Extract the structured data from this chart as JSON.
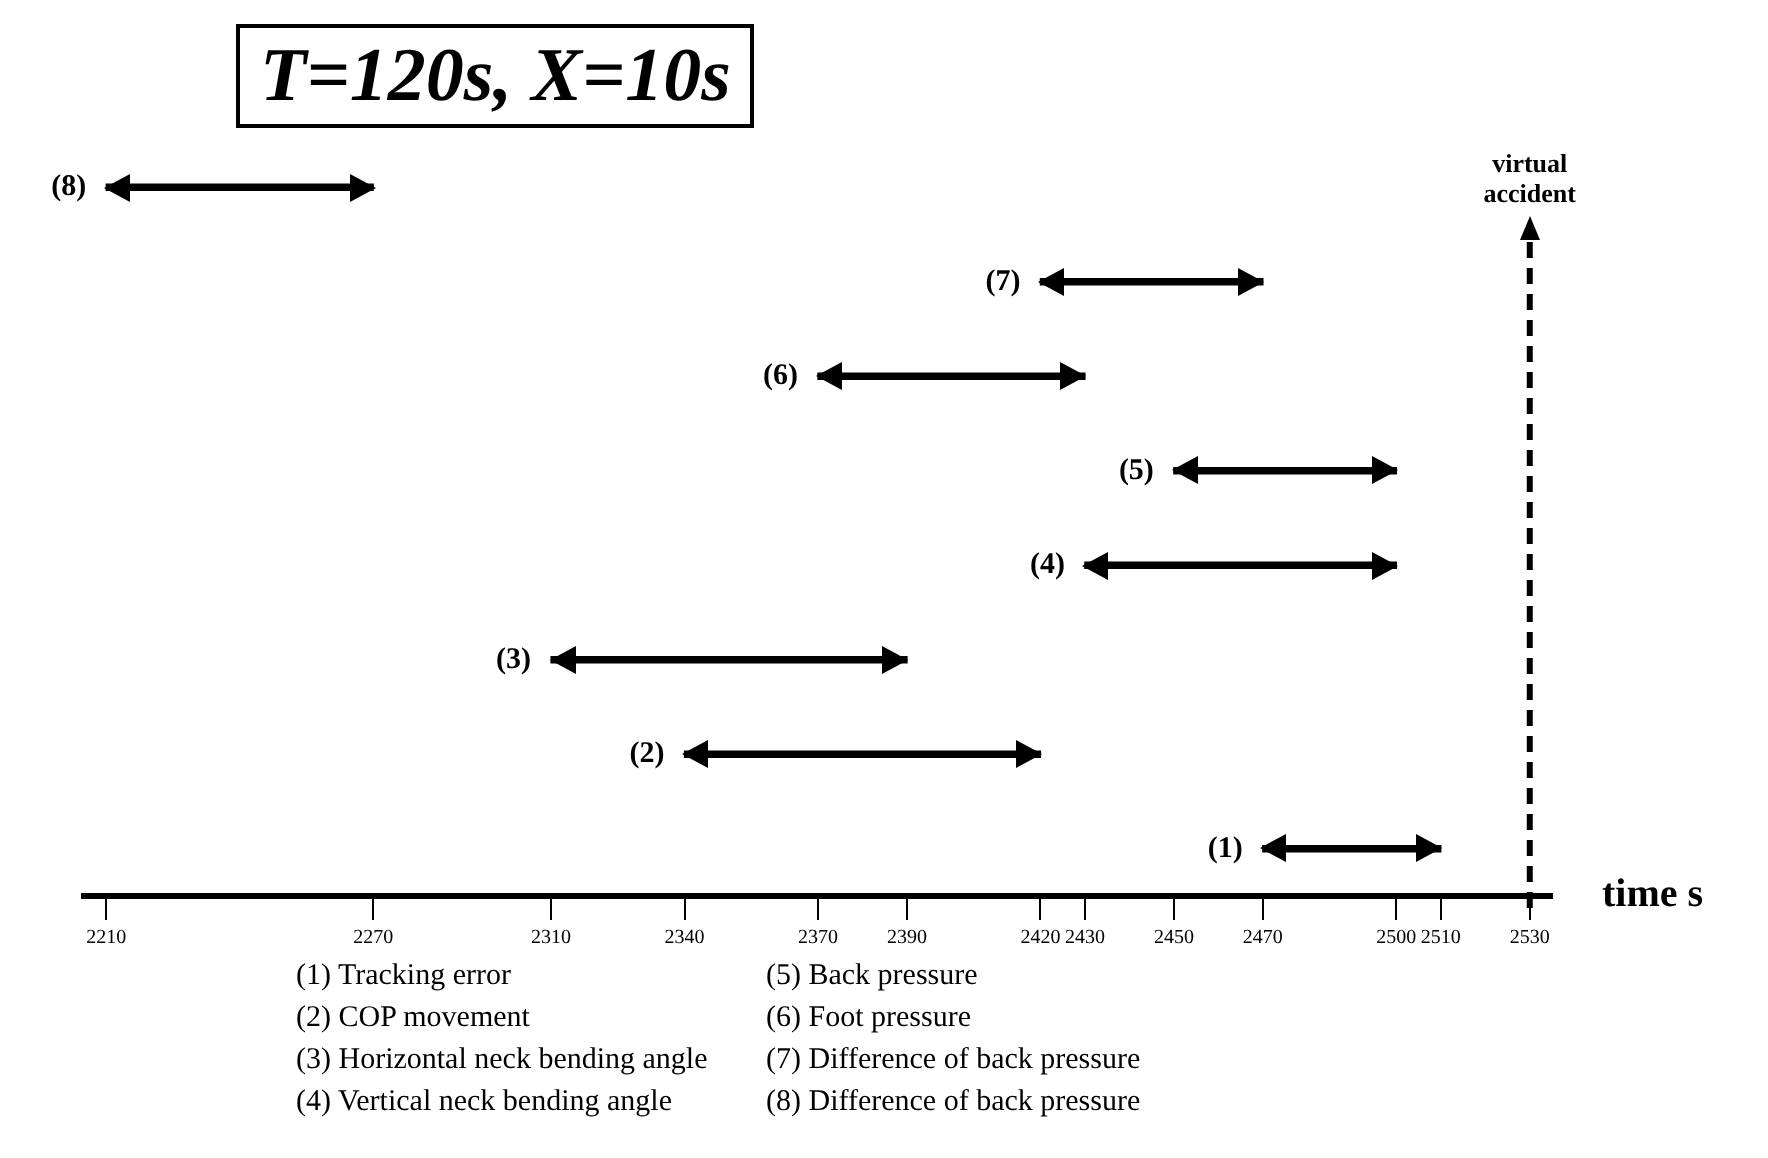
{
  "chart_data": {
    "type": "bar",
    "title": "T=120s, X=10s",
    "xlabel": "time s",
    "orientation": "horizontal",
    "categories": [
      "(8)",
      "(7)",
      "(6)",
      "(5)",
      "(4)",
      "(3)",
      "(2)",
      "(1)"
    ],
    "base": [
      2210,
      2420,
      2370,
      2450,
      2430,
      2310,
      2340,
      2470
    ],
    "values": [
      60,
      50,
      60,
      50,
      70,
      80,
      80,
      40
    ],
    "color": "#000000",
    "xlim": [
      2205,
      2535
    ],
    "xticks": [
      2210,
      2270,
      2310,
      2340,
      2370,
      2390,
      2420,
      2430,
      2450,
      2470,
      2500,
      2510,
      2530
    ],
    "tick_labels": "x",
    "grid": false,
    "ref_lines": [
      {
        "axis": "x",
        "value": 2530,
        "label": "virtual accident",
        "color": "#000000",
        "line_style": "dashed"
      }
    ],
    "annotations": [
      "(1) Tracking error",
      "(2) COP movement",
      "(3) Horizontal neck bending angle",
      "(4) Vertical neck bending angle",
      "(5) Back pressure",
      "(6) Foot pressure",
      "(7) Difference of back pressure",
      "(8) Difference of back pressure"
    ]
  }
}
